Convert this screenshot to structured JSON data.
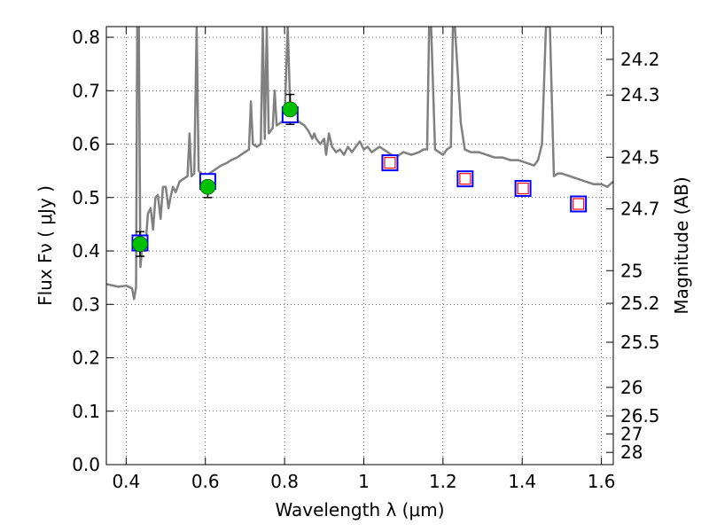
{
  "chart_data": {
    "type": "scatter",
    "xlabel": "Wavelength  λ (μm)",
    "ylabel": "Flux  Fν  ( μJy )",
    "ylabel_right": "Magnitude (AB)",
    "xlim": [
      0.35,
      1.63
    ],
    "ylim": [
      0.0,
      0.82
    ],
    "grid": true,
    "x_ticks": [
      0.4,
      0.6,
      0.8,
      1.0,
      1.2,
      1.4,
      1.6
    ],
    "x_tick_labels": [
      "0.4",
      "0.6",
      "0.8",
      "1",
      "1.2",
      "1.4",
      "1.6"
    ],
    "y_ticks": [
      0.0,
      0.1,
      0.2,
      0.3,
      0.4,
      0.5,
      0.6,
      0.7,
      0.8
    ],
    "y_tick_labels": [
      "0.0",
      "0.1",
      "0.2",
      "0.3",
      "0.4",
      "0.5",
      "0.6",
      "0.7",
      "0.8"
    ],
    "mag_ticks": [
      24.2,
      24.3,
      24.5,
      24.7,
      25,
      25.2,
      25.5,
      26,
      26.5,
      27,
      28
    ],
    "mag_tick_labels": [
      "24.2",
      "24.3",
      "24.5",
      "24.7",
      "25",
      "25.2",
      "25.5",
      "26",
      "26.5",
      "27",
      "28"
    ],
    "series": [
      {
        "marker": "circle",
        "color": "#00c000",
        "points": [
          {
            "x": 0.435,
            "y": 0.413,
            "yerr": 0.023
          },
          {
            "x": 0.606,
            "y": 0.52,
            "yerr": 0.02
          },
          {
            "x": 0.814,
            "y": 0.665,
            "yerr": 0.028
          }
        ]
      },
      {
        "marker": "square-open",
        "color": "#0000ff",
        "points": [
          {
            "x": 0.435,
            "y": 0.415
          },
          {
            "x": 0.606,
            "y": 0.53
          },
          {
            "x": 0.814,
            "y": 0.655
          },
          {
            "x": 1.066,
            "y": 0.565
          },
          {
            "x": 1.256,
            "y": 0.535
          },
          {
            "x": 1.402,
            "y": 0.517
          },
          {
            "x": 1.542,
            "y": 0.488
          }
        ]
      },
      {
        "marker": "square-open",
        "color": "#ff0000",
        "points": [
          {
            "x": 1.066,
            "y": 0.565
          },
          {
            "x": 1.256,
            "y": 0.535
          },
          {
            "x": 1.402,
            "y": 0.517
          },
          {
            "x": 1.542,
            "y": 0.488
          }
        ]
      },
      {
        "marker": "line",
        "color": "#808080",
        "points": [
          [
            0.35,
            0.338
          ],
          [
            0.38,
            0.333
          ],
          [
            0.4,
            0.335
          ],
          [
            0.415,
            0.33
          ],
          [
            0.42,
            0.31
          ],
          [
            0.425,
            0.332
          ],
          [
            0.428,
            0.82
          ],
          [
            0.432,
            0.82
          ],
          [
            0.436,
            0.37
          ],
          [
            0.442,
            0.42
          ],
          [
            0.448,
            0.4
          ],
          [
            0.455,
            0.47
          ],
          [
            0.462,
            0.48
          ],
          [
            0.468,
            0.44
          ],
          [
            0.474,
            0.5
          ],
          [
            0.48,
            0.505
          ],
          [
            0.487,
            0.46
          ],
          [
            0.493,
            0.52
          ],
          [
            0.5,
            0.52
          ],
          [
            0.507,
            0.48
          ],
          [
            0.512,
            0.5
          ],
          [
            0.518,
            0.52
          ],
          [
            0.525,
            0.51
          ],
          [
            0.535,
            0.53
          ],
          [
            0.545,
            0.535
          ],
          [
            0.555,
            0.54
          ],
          [
            0.56,
            0.62
          ],
          [
            0.565,
            0.54
          ],
          [
            0.572,
            0.545
          ],
          [
            0.578,
            0.82
          ],
          [
            0.583,
            0.55
          ],
          [
            0.59,
            0.545
          ],
          [
            0.6,
            0.53
          ],
          [
            0.61,
            0.545
          ],
          [
            0.62,
            0.55
          ],
          [
            0.63,
            0.555
          ],
          [
            0.64,
            0.56
          ],
          [
            0.655,
            0.565
          ],
          [
            0.665,
            0.57
          ],
          [
            0.68,
            0.575
          ],
          [
            0.69,
            0.58
          ],
          [
            0.7,
            0.585
          ],
          [
            0.71,
            0.59
          ],
          [
            0.715,
            0.68
          ],
          [
            0.72,
            0.6
          ],
          [
            0.73,
            0.595
          ],
          [
            0.74,
            0.6
          ],
          [
            0.745,
            0.82
          ],
          [
            0.75,
            0.61
          ],
          [
            0.755,
            0.82
          ],
          [
            0.76,
            0.62
          ],
          [
            0.77,
            0.63
          ],
          [
            0.775,
            0.7
          ],
          [
            0.78,
            0.635
          ],
          [
            0.79,
            0.64
          ],
          [
            0.8,
            0.645
          ],
          [
            0.808,
            0.82
          ],
          [
            0.815,
            0.65
          ],
          [
            0.83,
            0.645
          ],
          [
            0.84,
            0.64
          ],
          [
            0.85,
            0.635
          ],
          [
            0.86,
            0.625
          ],
          [
            0.87,
            0.61
          ],
          [
            0.875,
            0.62
          ],
          [
            0.88,
            0.61
          ],
          [
            0.89,
            0.6
          ],
          [
            0.9,
            0.61
          ],
          [
            0.905,
            0.58
          ],
          [
            0.912,
            0.62
          ],
          [
            0.92,
            0.595
          ],
          [
            0.93,
            0.585
          ],
          [
            0.94,
            0.59
          ],
          [
            0.95,
            0.58
          ],
          [
            0.96,
            0.595
          ],
          [
            0.97,
            0.585
          ],
          [
            0.98,
            0.595
          ],
          [
            0.99,
            0.605
          ],
          [
            1.0,
            0.59
          ],
          [
            1.01,
            0.595
          ],
          [
            1.02,
            0.585
          ],
          [
            1.03,
            0.59
          ],
          [
            1.04,
            0.595
          ],
          [
            1.05,
            0.59
          ],
          [
            1.06,
            0.585
          ],
          [
            1.07,
            0.58
          ],
          [
            1.08,
            0.575
          ],
          [
            1.09,
            0.58
          ],
          [
            1.1,
            0.585
          ],
          [
            1.12,
            0.58
          ],
          [
            1.14,
            0.585
          ],
          [
            1.15,
            0.59
          ],
          [
            1.16,
            0.59
          ],
          [
            1.165,
            0.82
          ],
          [
            1.17,
            0.82
          ],
          [
            1.18,
            0.59
          ],
          [
            1.19,
            0.585
          ],
          [
            1.2,
            0.58
          ],
          [
            1.21,
            0.59
          ],
          [
            1.22,
            0.595
          ],
          [
            1.225,
            0.82
          ],
          [
            1.23,
            0.82
          ],
          [
            1.245,
            0.64
          ],
          [
            1.255,
            0.59
          ],
          [
            1.27,
            0.585
          ],
          [
            1.29,
            0.585
          ],
          [
            1.31,
            0.58
          ],
          [
            1.33,
            0.575
          ],
          [
            1.35,
            0.575
          ],
          [
            1.37,
            0.57
          ],
          [
            1.39,
            0.57
          ],
          [
            1.41,
            0.565
          ],
          [
            1.43,
            0.56
          ],
          [
            1.44,
            0.57
          ],
          [
            1.45,
            0.6
          ],
          [
            1.46,
            0.82
          ],
          [
            1.47,
            0.82
          ],
          [
            1.48,
            0.54
          ],
          [
            1.49,
            0.545
          ],
          [
            1.5,
            0.545
          ],
          [
            1.52,
            0.54
          ],
          [
            1.54,
            0.535
          ],
          [
            1.56,
            0.53
          ],
          [
            1.58,
            0.525
          ],
          [
            1.6,
            0.525
          ],
          [
            1.615,
            0.52
          ],
          [
            1.63,
            0.53
          ]
        ]
      }
    ]
  }
}
